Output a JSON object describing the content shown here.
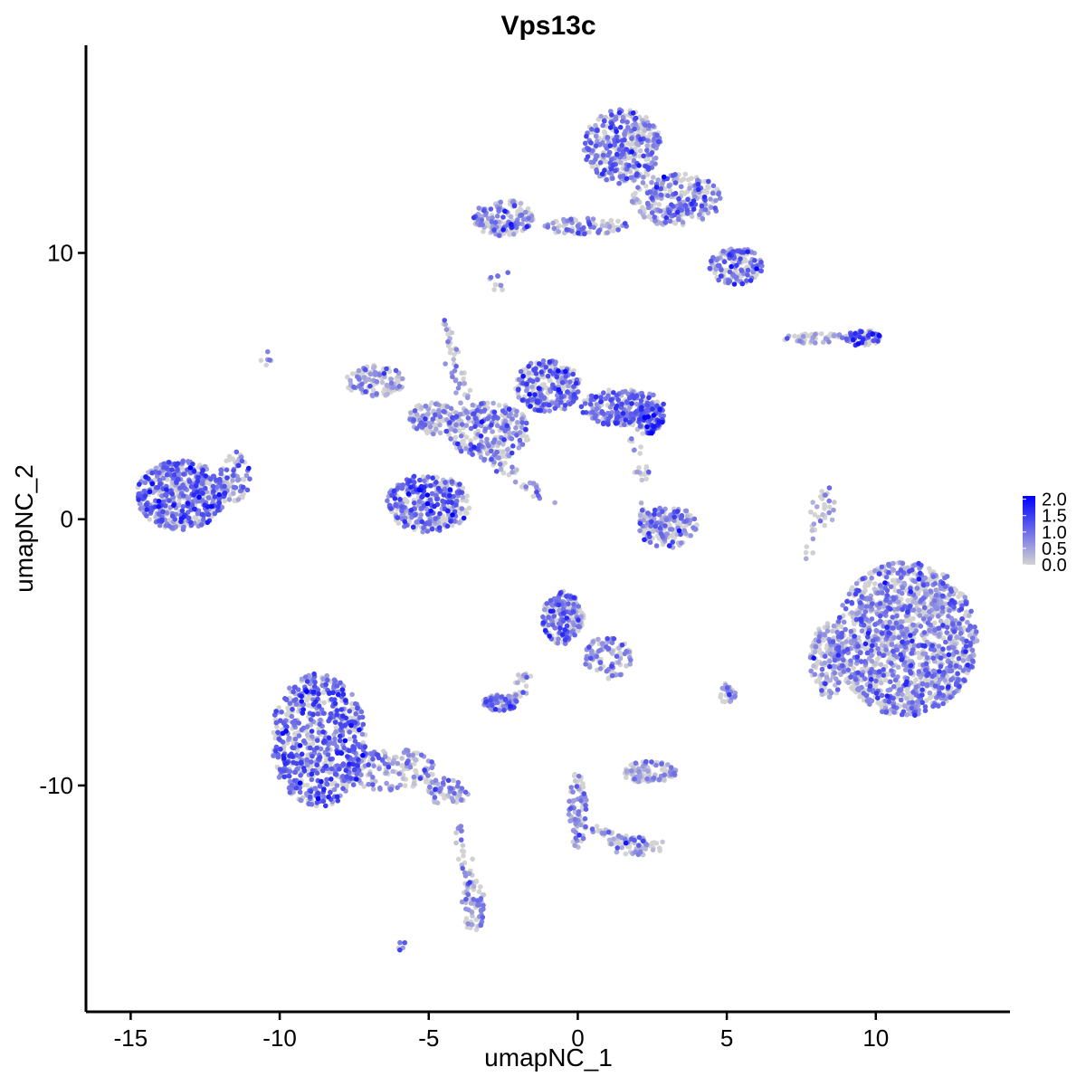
{
  "chart_data": {
    "type": "scatter",
    "title": "Vps13c",
    "xlabel": "umapNC_1",
    "ylabel": "umapNC_2",
    "xlim": [
      -16.5,
      14.5
    ],
    "ylim": [
      -18.5,
      17.8
    ],
    "x_ticks": [
      -15,
      -10,
      -5,
      0,
      5,
      10
    ],
    "y_ticks": [
      -10,
      0,
      10
    ],
    "x_tick_labels": [
      "-15",
      "-10",
      "-5",
      "0",
      "5",
      "10"
    ],
    "y_tick_labels": [
      "-10",
      "0",
      "10"
    ],
    "grid": false,
    "legend": {
      "placement": "right",
      "title": "",
      "min": 0.0,
      "max": 2.1,
      "ticks": [
        0.0,
        0.5,
        1.0,
        1.5,
        2.0
      ],
      "tick_labels": [
        "0.0",
        "0.5",
        "1.0",
        "1.5",
        "2.0"
      ],
      "low_color": "#d3d3d3",
      "high_color": "#0000ff"
    },
    "clusters": [
      {
        "cx": -13.3,
        "cy": 0.9,
        "rx": 1.5,
        "ry": 1.3,
        "n": 520,
        "expr_mean": 0.9
      },
      {
        "cx": -11.5,
        "cy": 1.6,
        "rx": 0.5,
        "ry": 1.0,
        "n": 70,
        "expr_mean": 0.8
      },
      {
        "cx": -8.7,
        "cy": -8.3,
        "rx": 1.6,
        "ry": 2.5,
        "n": 700,
        "expr_mean": 1.0
      },
      {
        "cx": -6.3,
        "cy": -9.4,
        "rx": 1.5,
        "ry": 0.8,
        "n": 150,
        "expr_mean": 0.7
      },
      {
        "cx": -4.4,
        "cy": -10.2,
        "rx": 0.8,
        "ry": 0.5,
        "n": 60,
        "expr_mean": 0.7
      },
      {
        "cx": -3.5,
        "cy": -14.5,
        "rx": 0.4,
        "ry": 1.0,
        "n": 70,
        "expr_mean": 0.6
      },
      {
        "cx": -5.0,
        "cy": 0.6,
        "rx": 1.4,
        "ry": 1.1,
        "n": 350,
        "expr_mean": 0.9
      },
      {
        "cx": -6.8,
        "cy": 5.2,
        "rx": 1.0,
        "ry": 0.6,
        "n": 110,
        "expr_mean": 0.5
      },
      {
        "cx": -4.8,
        "cy": 3.8,
        "rx": 0.9,
        "ry": 0.6,
        "n": 120,
        "expr_mean": 0.6
      },
      {
        "cx": -3.0,
        "cy": 3.3,
        "rx": 1.4,
        "ry": 1.1,
        "n": 250,
        "expr_mean": 0.7
      },
      {
        "cx": -1.0,
        "cy": 5.0,
        "rx": 1.1,
        "ry": 1.0,
        "n": 260,
        "expr_mean": 1.0
      },
      {
        "cx": 1.5,
        "cy": 4.2,
        "rx": 1.4,
        "ry": 0.7,
        "n": 220,
        "expr_mean": 0.9
      },
      {
        "cx": 2.3,
        "cy": 3.8,
        "rx": 0.6,
        "ry": 0.6,
        "n": 100,
        "expr_mean": 1.1
      },
      {
        "cx": 1.5,
        "cy": 14.0,
        "rx": 1.3,
        "ry": 1.4,
        "n": 350,
        "expr_mean": 0.8
      },
      {
        "cx": 3.3,
        "cy": 12.0,
        "rx": 1.5,
        "ry": 1.0,
        "n": 250,
        "expr_mean": 0.8
      },
      {
        "cx": 5.3,
        "cy": 9.5,
        "rx": 0.9,
        "ry": 0.7,
        "n": 150,
        "expr_mean": 0.8
      },
      {
        "cx": -2.5,
        "cy": 11.3,
        "rx": 1.0,
        "ry": 0.7,
        "n": 150,
        "expr_mean": 0.7
      },
      {
        "cx": 0.2,
        "cy": 11.0,
        "rx": 1.5,
        "ry": 0.3,
        "n": 80,
        "expr_mean": 0.6
      },
      {
        "cx": 9.6,
        "cy": 6.8,
        "rx": 0.6,
        "ry": 0.3,
        "n": 60,
        "expr_mean": 1.3
      },
      {
        "cx": 8.0,
        "cy": 6.8,
        "rx": 1.2,
        "ry": 0.2,
        "n": 50,
        "expr_mean": 0.5
      },
      {
        "cx": 3.0,
        "cy": -0.3,
        "rx": 1.0,
        "ry": 0.8,
        "n": 160,
        "expr_mean": 0.7
      },
      {
        "cx": -0.5,
        "cy": -3.7,
        "rx": 0.7,
        "ry": 1.0,
        "n": 200,
        "expr_mean": 0.8
      },
      {
        "cx": 1.0,
        "cy": -5.2,
        "rx": 0.8,
        "ry": 0.8,
        "n": 100,
        "expr_mean": 0.6
      },
      {
        "cx": -2.6,
        "cy": -6.9,
        "rx": 0.6,
        "ry": 0.3,
        "n": 80,
        "expr_mean": 0.9
      },
      {
        "cx": 2.4,
        "cy": -9.5,
        "rx": 0.9,
        "ry": 0.4,
        "n": 110,
        "expr_mean": 0.4
      },
      {
        "cx": 0.0,
        "cy": -11.0,
        "rx": 0.3,
        "ry": 1.5,
        "n": 80,
        "expr_mean": 0.6
      },
      {
        "cx": 2.0,
        "cy": -12.3,
        "rx": 1.0,
        "ry": 0.4,
        "n": 60,
        "expr_mean": 0.5
      },
      {
        "cx": 11.0,
        "cy": -4.5,
        "rx": 2.4,
        "ry": 2.9,
        "n": 1400,
        "expr_mean": 0.7
      },
      {
        "cx": 8.4,
        "cy": -5.3,
        "rx": 0.6,
        "ry": 1.4,
        "n": 160,
        "expr_mean": 0.5
      },
      {
        "cx": 5.0,
        "cy": -6.5,
        "rx": 0.3,
        "ry": 0.4,
        "n": 25,
        "expr_mean": 0.5
      },
      {
        "cx": 8.3,
        "cy": 0.5,
        "rx": 0.4,
        "ry": 0.8,
        "n": 20,
        "expr_mean": 0.3
      }
    ],
    "streaks": [
      {
        "x1": -4.5,
        "y1": 7.5,
        "x2": -3.8,
        "y2": 4.5,
        "n": 40,
        "expr_mean": 0.5
      },
      {
        "x1": -3.2,
        "y1": 2.5,
        "x2": -1.0,
        "y2": 0.7,
        "n": 40,
        "expr_mean": 0.5
      },
      {
        "x1": -10.5,
        "y1": 6.1,
        "x2": -10.4,
        "y2": 6.0,
        "n": 6,
        "expr_mean": 0.5
      },
      {
        "x1": -2.7,
        "y1": 8.5,
        "x2": -2.7,
        "y2": 9.2,
        "n": 10,
        "expr_mean": 0.6
      },
      {
        "x1": -1.7,
        "y1": -5.8,
        "x2": -2.2,
        "y2": -6.8,
        "n": 25,
        "expr_mean": 0.6
      },
      {
        "x1": 0.5,
        "y1": -11.6,
        "x2": 2.0,
        "y2": -12.3,
        "n": 30,
        "expr_mean": 0.4
      },
      {
        "x1": -4.1,
        "y1": -11.5,
        "x2": -3.7,
        "y2": -13.5,
        "n": 25,
        "expr_mean": 0.4
      },
      {
        "x1": -6.0,
        "y1": -16.2,
        "x2": -5.9,
        "y2": -16.0,
        "n": 6,
        "expr_mean": 0.6
      },
      {
        "x1": 1.8,
        "y1": 3.0,
        "x2": 2.3,
        "y2": 1.5,
        "n": 20,
        "expr_mean": 0.4
      },
      {
        "x1": 8.2,
        "y1": 0.9,
        "x2": 7.8,
        "y2": -1.5,
        "n": 15,
        "expr_mean": 0.4
      },
      {
        "x1": 2.8,
        "y1": -0.2,
        "x2": 2.1,
        "y2": 0.4,
        "n": 20,
        "expr_mean": 0.4
      }
    ]
  }
}
